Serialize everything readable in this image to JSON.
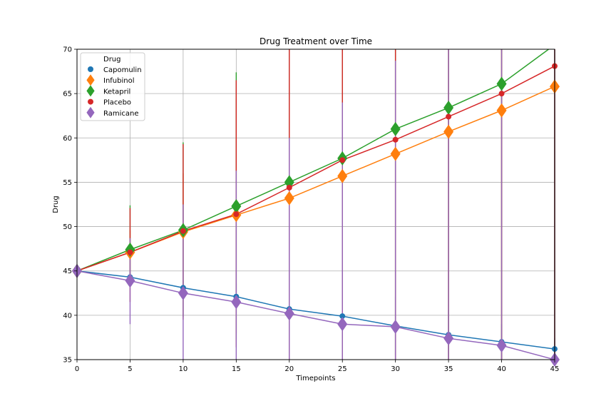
{
  "chart_data": {
    "type": "line",
    "title": "Drug Treatment over Time",
    "xlabel": "Timepoints",
    "ylabel": "Drug",
    "xlim": [
      0,
      45
    ],
    "ylim": [
      35,
      70
    ],
    "xticks": [
      0,
      5,
      10,
      15,
      20,
      25,
      30,
      35,
      40,
      45
    ],
    "yticks": [
      35,
      40,
      45,
      50,
      55,
      60,
      65,
      70
    ],
    "grid": true,
    "legend": {
      "title": "Drug",
      "placement": "top-left"
    },
    "x": [
      0,
      5,
      10,
      15,
      20,
      25,
      30,
      35,
      40,
      45
    ],
    "series": [
      {
        "name": "Capomulin",
        "color": "#1f77b4",
        "marker": "circle",
        "values": [
          45.0,
          44.3,
          43.1,
          42.1,
          40.7,
          39.9,
          38.8,
          37.8,
          37.0,
          36.2
        ],
        "error_low": [
          45.0,
          43.8,
          42.2,
          40.6,
          38.9,
          37.4,
          35.5,
          35.0,
          35.0,
          35.0
        ],
        "error_high": [
          45.0,
          44.8,
          43.9,
          43.6,
          42.6,
          42.4,
          42.1,
          40.6,
          39.0,
          37.4
        ]
      },
      {
        "name": "Infubinol",
        "color": "#ff7f0e",
        "marker": "diamond",
        "values": [
          45.0,
          47.1,
          49.4,
          51.3,
          53.2,
          55.7,
          58.2,
          60.7,
          63.1,
          65.8
        ],
        "error_low": [
          45.0,
          45.0,
          42.9,
          38.0,
          35.0,
          35.0,
          35.0,
          35.0,
          35.0,
          35.0
        ],
        "error_high": [
          45.0,
          49.6,
          56.0,
          64.5,
          70.0,
          70.0,
          70.0,
          70.0,
          70.0,
          70.0
        ]
      },
      {
        "name": "Ketapril",
        "color": "#2ca02c",
        "marker": "diamond",
        "values": [
          45.0,
          47.4,
          49.6,
          52.3,
          55.0,
          57.7,
          61.0,
          63.4,
          66.1,
          70.5
        ],
        "error_low": [
          45.0,
          43.8,
          39.8,
          37.2,
          35.0,
          35.0,
          35.0,
          35.0,
          35.0,
          35.0
        ],
        "error_high": [
          45.0,
          52.4,
          59.5,
          67.4,
          70.0,
          70.0,
          70.0,
          70.0,
          70.0,
          70.0
        ]
      },
      {
        "name": "Placebo",
        "color": "#d62728",
        "marker": "circle",
        "values": [
          45.0,
          47.1,
          49.5,
          51.4,
          54.4,
          57.5,
          59.8,
          62.4,
          65.0,
          68.1
        ],
        "error_low": [
          45.0,
          41.5,
          39.5,
          36.4,
          35.0,
          35.0,
          35.0,
          35.0,
          35.0,
          35.0
        ],
        "error_high": [
          45.0,
          52.1,
          59.3,
          66.5,
          70.0,
          70.0,
          70.0,
          70.0,
          70.0,
          70.0
        ]
      },
      {
        "name": "Ramicane",
        "color": "#9467bd",
        "marker": "diamond",
        "values": [
          45.0,
          43.9,
          42.5,
          41.5,
          40.2,
          39.0,
          38.7,
          37.4,
          36.6,
          35.0
        ],
        "error_low": [
          45.0,
          39.0,
          35.0,
          35.0,
          35.0,
          35.0,
          35.0,
          35.0,
          35.0,
          35.0
        ],
        "error_high": [
          45.0,
          48.7,
          52.5,
          56.3,
          60.0,
          64.0,
          68.7,
          70.0,
          70.0,
          70.0
        ]
      }
    ]
  }
}
